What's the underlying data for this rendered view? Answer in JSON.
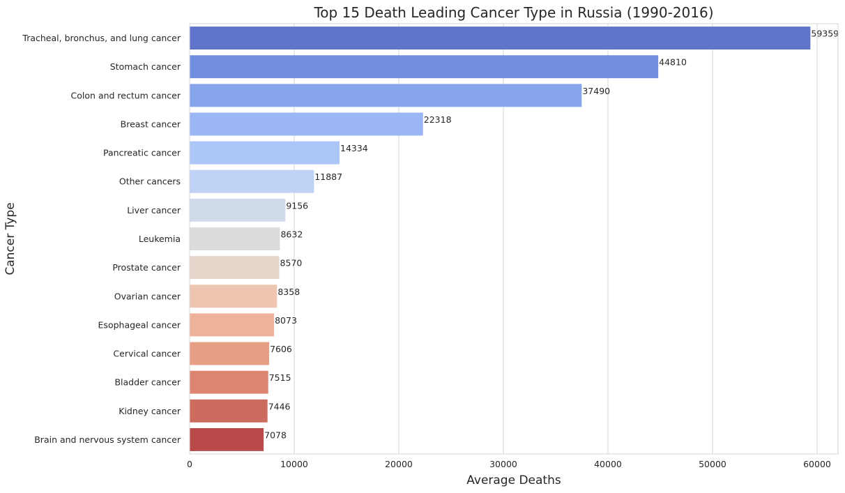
{
  "chart_data": {
    "type": "bar",
    "orientation": "horizontal",
    "title": "Top 15 Death Leading Cancer Type in Russia (1990-2016)",
    "xlabel": "Average Deaths",
    "ylabel": "Cancer Type",
    "xlim": [
      0,
      62000
    ],
    "xticks": [
      0,
      10000,
      20000,
      30000,
      40000,
      50000,
      60000
    ],
    "grid": "vertical",
    "categories": [
      "Tracheal, bronchus, and lung cancer",
      "Stomach cancer",
      "Colon and rectum cancer",
      "Breast cancer",
      "Pancreatic cancer",
      "Other cancers",
      "Liver cancer",
      "Leukemia",
      "Prostate cancer",
      "Ovarian cancer",
      "Esophageal cancer",
      "Cervical cancer",
      "Bladder cancer",
      "Kidney cancer",
      "Brain and nervous system cancer"
    ],
    "values": [
      59359,
      44810,
      37490,
      22318,
      14334,
      11887,
      9156,
      8632,
      8570,
      8358,
      8073,
      7606,
      7515,
      7446,
      7078
    ],
    "colors": [
      "#6074cb",
      "#718ddf",
      "#87a5ea",
      "#9ab6f4",
      "#adc6f8",
      "#bed2f5",
      "#d1daeb",
      "#dcdcdc",
      "#e7d4ca",
      "#edc5b1",
      "#eeb19a",
      "#e69f85",
      "#dc8671",
      "#cd6b5e",
      "#b94a49"
    ]
  }
}
